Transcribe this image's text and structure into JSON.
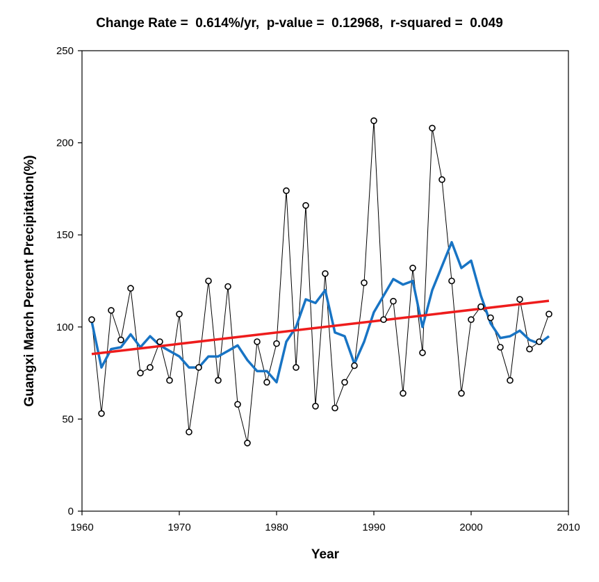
{
  "chart_data": {
    "type": "line",
    "title": "Change Rate =  0.614%/yr,  p-value =  0.12968,  r-squared =  0.049",
    "xlabel": "Year",
    "ylabel": "Guangxi March Percent Precipitation(%)",
    "xlim": [
      1960,
      2010
    ],
    "ylim": [
      0,
      250
    ],
    "xticks": [
      1960,
      1970,
      1980,
      1990,
      2000,
      2010
    ],
    "yticks": [
      0,
      50,
      100,
      150,
      200,
      250
    ],
    "grid": false,
    "legend": "none",
    "x": [
      1961,
      1962,
      1963,
      1964,
      1965,
      1966,
      1967,
      1968,
      1969,
      1970,
      1971,
      1972,
      1973,
      1974,
      1975,
      1976,
      1977,
      1978,
      1979,
      1980,
      1981,
      1982,
      1983,
      1984,
      1985,
      1986,
      1987,
      1988,
      1989,
      1990,
      1991,
      1992,
      1993,
      1994,
      1995,
      1996,
      1997,
      1998,
      1999,
      2000,
      2001,
      2002,
      2003,
      2004,
      2005,
      2006,
      2007,
      2008
    ],
    "series": [
      {
        "style": "thin black line with open circle markers",
        "color": "#000000",
        "values": [
          104,
          53,
          109,
          93,
          121,
          75,
          78,
          92,
          71,
          107,
          43,
          78,
          125,
          71,
          122,
          58,
          37,
          92,
          70,
          91,
          174,
          78,
          166,
          57,
          129,
          56,
          70,
          79,
          124,
          212,
          104,
          114,
          64,
          132,
          86,
          208,
          180,
          125,
          64,
          104,
          111,
          105,
          89,
          71,
          115,
          88,
          92,
          107
        ]
      },
      {
        "style": "smoothed curve",
        "color": "#1874c4",
        "values": [
          103,
          78,
          88,
          89,
          96,
          89,
          95,
          90,
          87,
          84,
          78,
          78,
          84,
          84,
          87,
          90,
          82,
          76,
          76,
          70,
          92,
          100,
          115,
          113,
          120,
          97,
          95,
          80,
          92,
          108,
          117,
          126,
          123,
          125,
          100,
          120,
          133,
          146,
          132,
          136,
          117,
          102,
          94,
          95,
          98,
          93,
          91,
          95
        ]
      },
      {
        "style": "linear trend",
        "color": "#ee1c1c",
        "x": [
          1961,
          2008
        ],
        "values": [
          85.3,
          114.2
        ]
      }
    ]
  }
}
